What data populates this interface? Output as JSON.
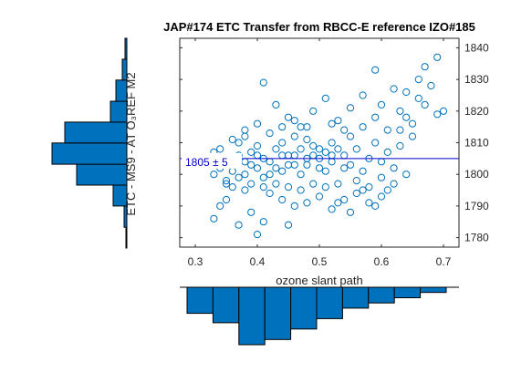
{
  "chart_data": {
    "type": "scatter",
    "title": "JAP#174 ETC Transfer from RBCC-E reference IZO#185",
    "xlabel": "ozone slant path",
    "ylabel": "ETC - MS9 - AT O₃REF M2",
    "xlim": [
      0.275,
      0.725
    ],
    "ylim": [
      1777,
      1843
    ],
    "xticks": [
      0.3,
      0.4,
      0.5,
      0.6,
      0.7
    ],
    "yticks": [
      1780,
      1790,
      1800,
      1810,
      1820,
      1830,
      1840
    ],
    "grid": false,
    "fit_line": {
      "y": 1805,
      "label": "1805 ± 5"
    },
    "marker": "open-circle",
    "color": "#0072BD",
    "series": [
      {
        "points": [
          [
            0.33,
            1786
          ],
          [
            0.34,
            1790
          ],
          [
            0.35,
            1792
          ],
          [
            0.36,
            1796
          ],
          [
            0.37,
            1784
          ],
          [
            0.38,
            1795
          ],
          [
            0.39,
            1788
          ],
          [
            0.4,
            1781
          ],
          [
            0.41,
            1785
          ],
          [
            0.45,
            1784
          ],
          [
            0.33,
            1800
          ],
          [
            0.34,
            1802
          ],
          [
            0.35,
            1798
          ],
          [
            0.36,
            1805
          ],
          [
            0.37,
            1810
          ],
          [
            0.38,
            1800
          ],
          [
            0.39,
            1803
          ],
          [
            0.4,
            1806
          ],
          [
            0.41,
            1799
          ],
          [
            0.42,
            1804
          ],
          [
            0.43,
            1808
          ],
          [
            0.44,
            1801
          ],
          [
            0.45,
            1806
          ],
          [
            0.46,
            1803
          ],
          [
            0.47,
            1800
          ],
          [
            0.48,
            1805
          ],
          [
            0.49,
            1809
          ],
          [
            0.5,
            1802
          ],
          [
            0.51,
            1807
          ],
          [
            0.52,
            1804
          ],
          [
            0.34,
            1808
          ],
          [
            0.36,
            1811
          ],
          [
            0.38,
            1812
          ],
          [
            0.4,
            1809
          ],
          [
            0.42,
            1813
          ],
          [
            0.44,
            1810
          ],
          [
            0.46,
            1812
          ],
          [
            0.48,
            1811
          ],
          [
            0.5,
            1808
          ],
          [
            0.52,
            1810
          ],
          [
            0.35,
            1797
          ],
          [
            0.37,
            1799
          ],
          [
            0.39,
            1797
          ],
          [
            0.41,
            1796
          ],
          [
            0.43,
            1797
          ],
          [
            0.45,
            1796
          ],
          [
            0.47,
            1795
          ],
          [
            0.49,
            1797
          ],
          [
            0.51,
            1796
          ],
          [
            0.53,
            1797
          ],
          [
            0.42,
            1794
          ],
          [
            0.44,
            1792
          ],
          [
            0.46,
            1790
          ],
          [
            0.48,
            1791
          ],
          [
            0.5,
            1793
          ],
          [
            0.52,
            1789
          ],
          [
            0.54,
            1792
          ],
          [
            0.56,
            1794
          ],
          [
            0.58,
            1791
          ],
          [
            0.6,
            1793
          ],
          [
            0.41,
            1829
          ],
          [
            0.43,
            1822
          ],
          [
            0.45,
            1818
          ],
          [
            0.47,
            1815
          ],
          [
            0.49,
            1820
          ],
          [
            0.51,
            1824
          ],
          [
            0.53,
            1817
          ],
          [
            0.55,
            1821
          ],
          [
            0.57,
            1825
          ],
          [
            0.59,
            1833
          ],
          [
            0.54,
            1806
          ],
          [
            0.55,
            1803
          ],
          [
            0.56,
            1808
          ],
          [
            0.57,
            1801
          ],
          [
            0.58,
            1805
          ],
          [
            0.59,
            1810
          ],
          [
            0.6,
            1804
          ],
          [
            0.61,
            1807
          ],
          [
            0.62,
            1802
          ],
          [
            0.63,
            1809
          ],
          [
            0.55,
            1812
          ],
          [
            0.57,
            1815
          ],
          [
            0.59,
            1818
          ],
          [
            0.61,
            1814
          ],
          [
            0.63,
            1820
          ],
          [
            0.65,
            1816
          ],
          [
            0.67,
            1822
          ],
          [
            0.69,
            1819
          ],
          [
            0.64,
            1826
          ],
          [
            0.66,
            1830
          ],
          [
            0.6,
            1822
          ],
          [
            0.62,
            1827
          ],
          [
            0.64,
            1818
          ],
          [
            0.66,
            1824
          ],
          [
            0.68,
            1828
          ],
          [
            0.7,
            1820
          ],
          [
            0.69,
            1837
          ],
          [
            0.67,
            1834
          ],
          [
            0.65,
            1812
          ],
          [
            0.63,
            1814
          ],
          [
            0.56,
            1798
          ],
          [
            0.58,
            1796
          ],
          [
            0.6,
            1799
          ],
          [
            0.62,
            1797
          ],
          [
            0.64,
            1800
          ],
          [
            0.53,
            1791
          ],
          [
            0.55,
            1788
          ],
          [
            0.57,
            1795
          ],
          [
            0.61,
            1795
          ],
          [
            0.59,
            1790
          ],
          [
            0.32,
            1804
          ],
          [
            0.33,
            1807
          ],
          [
            0.34,
            1805
          ],
          [
            0.35,
            1803
          ],
          [
            0.36,
            1801
          ],
          [
            0.37,
            1806
          ],
          [
            0.38,
            1804
          ],
          [
            0.39,
            1807
          ],
          [
            0.4,
            1802
          ],
          [
            0.41,
            1805
          ],
          [
            0.42,
            1800
          ],
          [
            0.43,
            1802
          ],
          [
            0.44,
            1806
          ],
          [
            0.45,
            1803
          ],
          [
            0.46,
            1806
          ],
          [
            0.47,
            1808
          ],
          [
            0.48,
            1803
          ],
          [
            0.49,
            1806
          ],
          [
            0.5,
            1805
          ],
          [
            0.51,
            1801
          ],
          [
            0.52,
            1806
          ],
          [
            0.53,
            1808
          ],
          [
            0.54,
            1802
          ],
          [
            0.44,
            1815
          ],
          [
            0.46,
            1817
          ],
          [
            0.48,
            1815
          ],
          [
            0.4,
            1816
          ],
          [
            0.38,
            1814
          ],
          [
            0.52,
            1816
          ],
          [
            0.54,
            1814
          ]
        ]
      }
    ],
    "y_hist": {
      "bin_edges": [
        1777,
        1783.3,
        1789.7,
        1796,
        1802.3,
        1808.7,
        1815,
        1821.3,
        1827.7,
        1834,
        1840.3
      ],
      "counts": [
        1,
        3,
        15,
        55,
        82,
        68,
        18,
        12,
        5,
        2
      ]
    },
    "x_hist": {
      "bin_edges": [
        0.3,
        0.34,
        0.38,
        0.42,
        0.46,
        0.5,
        0.54,
        0.58,
        0.62,
        0.66,
        0.7
      ],
      "counts": [
        25,
        34,
        55,
        50,
        40,
        30,
        20,
        15,
        10,
        5
      ]
    }
  }
}
